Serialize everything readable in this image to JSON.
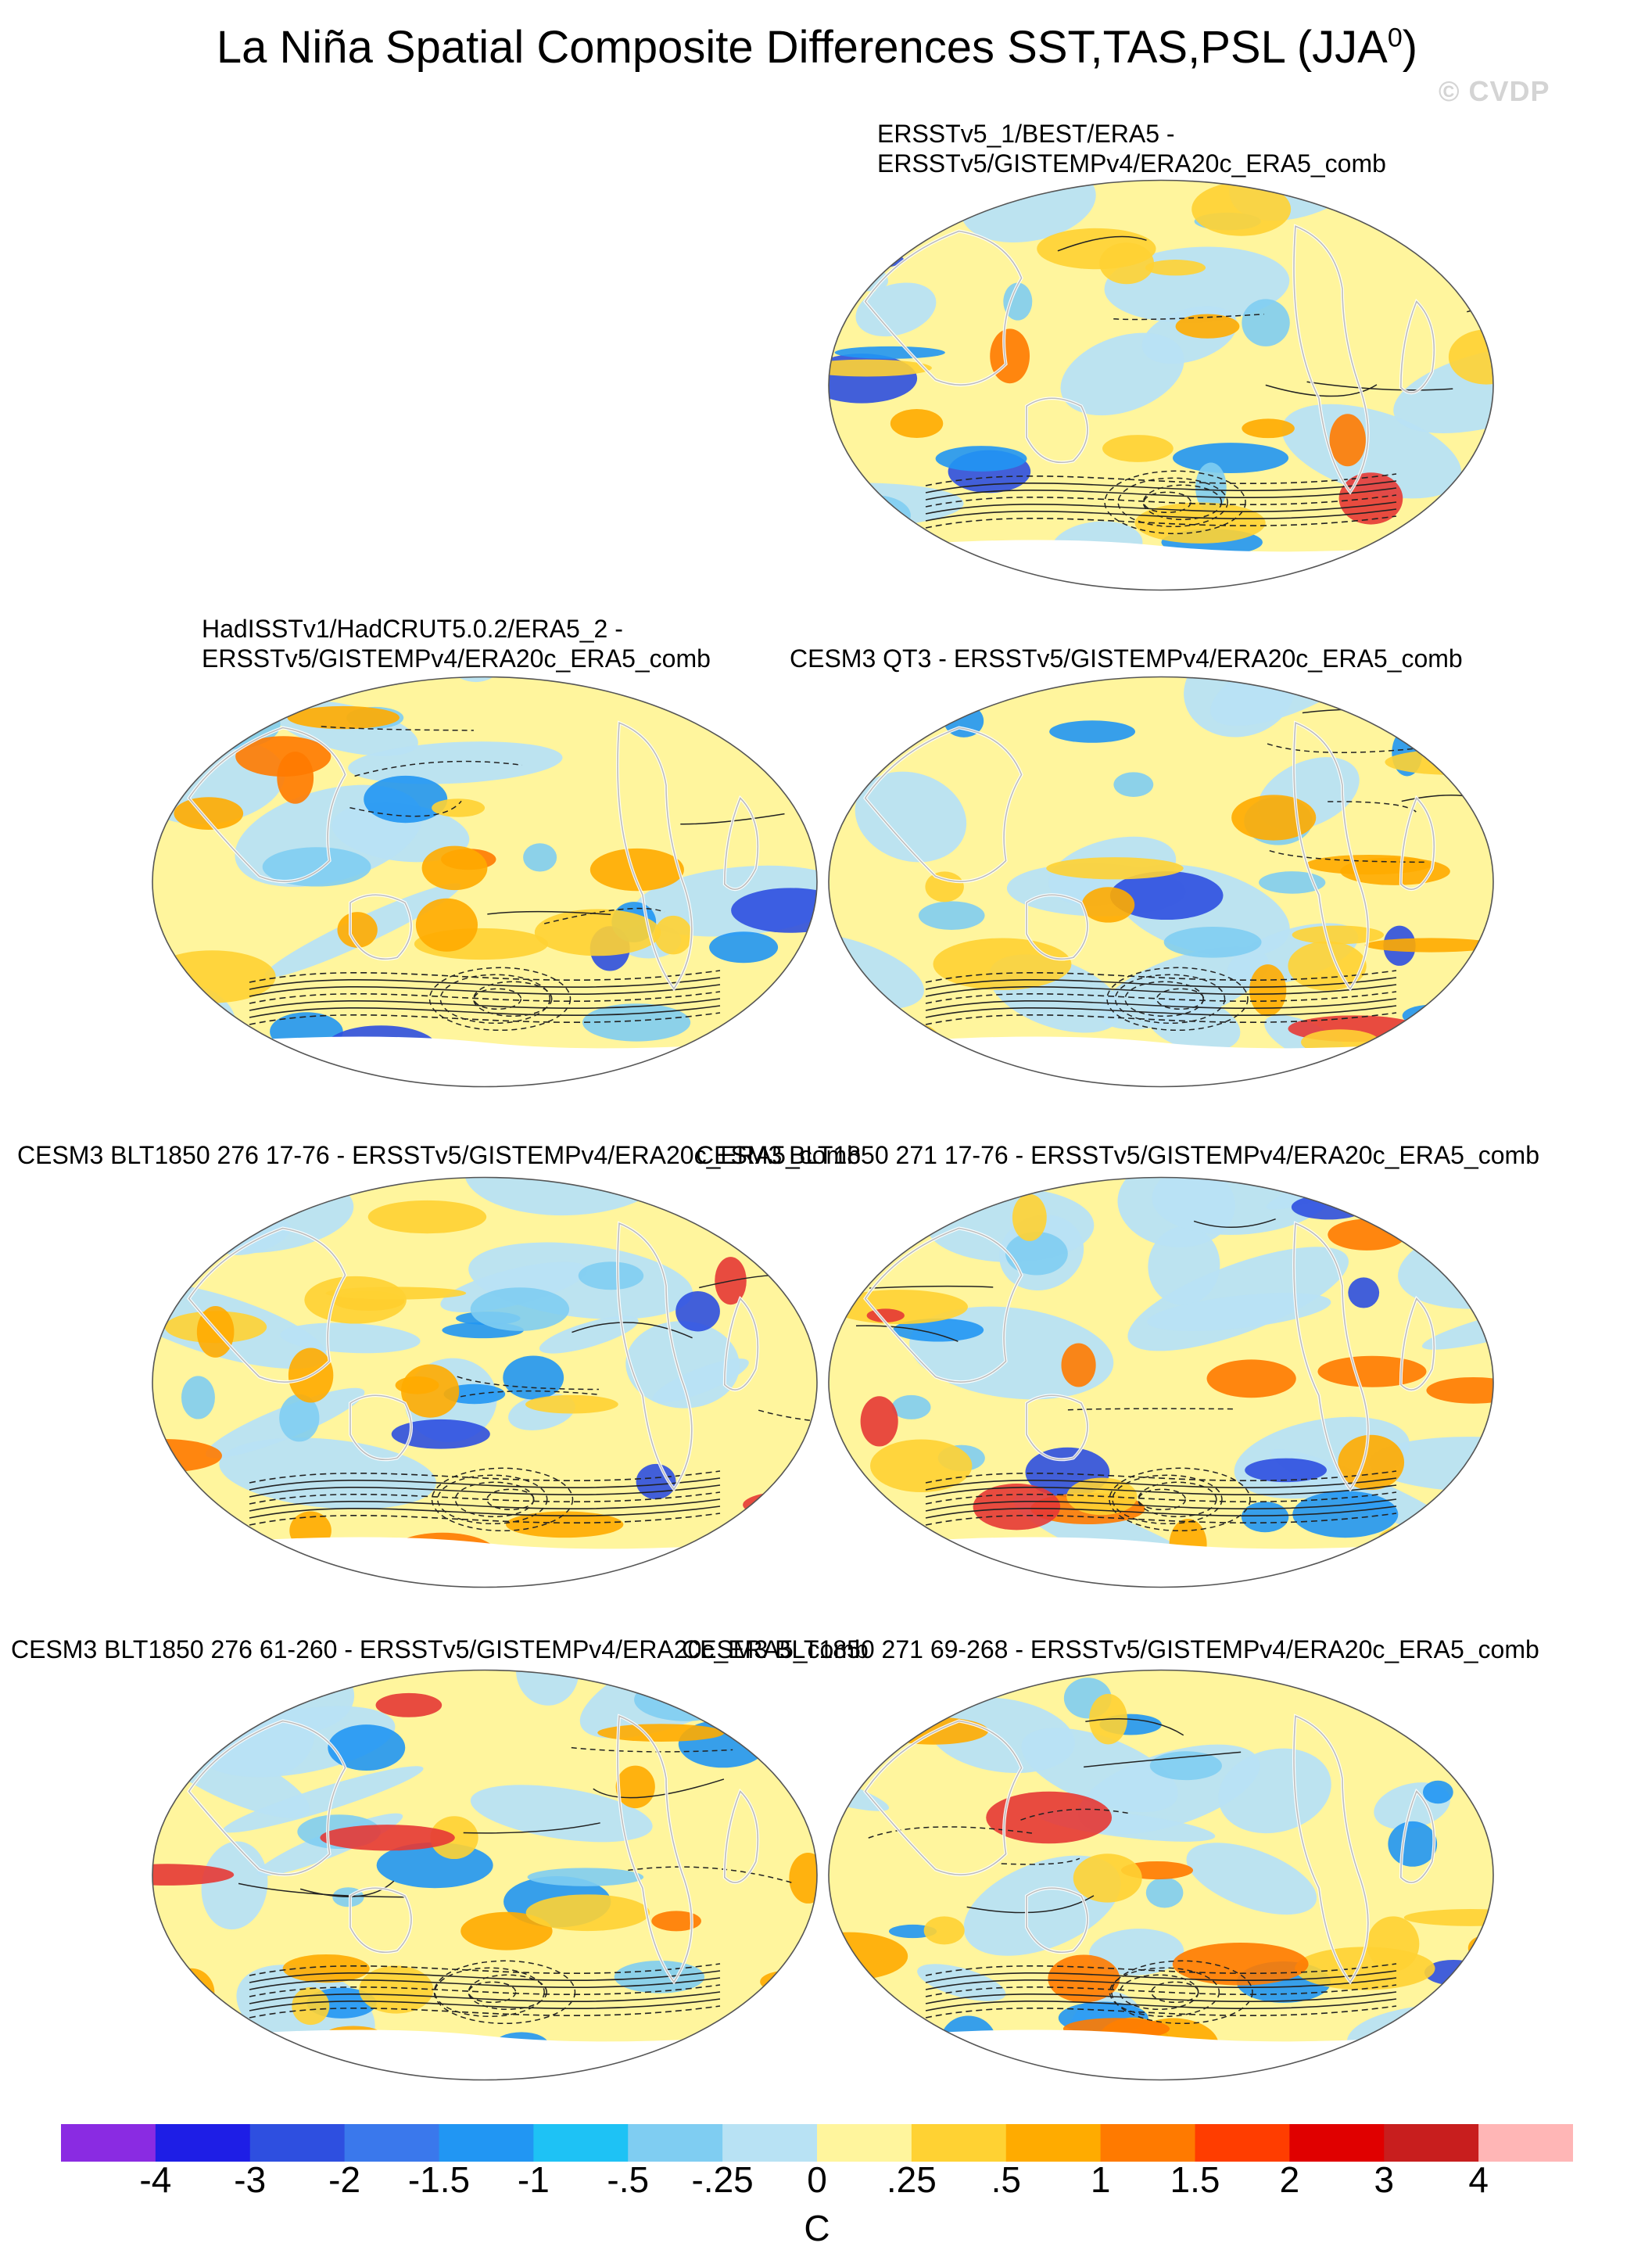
{
  "title": {
    "main": "La Niña Spatial Composite Differences SST,TAS,PSL (JJA",
    "superscript": "0",
    "close": ")"
  },
  "watermark": "© CVDP",
  "panels": [
    {
      "line1": "ERSSTv5_1/BEST/ERA5 -",
      "line2": "ERSSTv5/GISTEMPv4/ERA20c_ERA5_comb"
    },
    {
      "line1": "HadISSTv1/HadCRUT5.0.2/ERA5_2 -",
      "line2": "ERSSTv5/GISTEMPv4/ERA20c_ERA5_comb"
    },
    {
      "line1": "CESM3 QT3 - ERSSTv5/GISTEMPv4/ERA20c_ERA5_comb"
    },
    {
      "line1": "CESM3 BLT1850 276 17-76 - ERSSTv5/GISTEMPv4/ERA20c_ERA5_comb"
    },
    {
      "line1": "CESM3 BLT1850 271 17-76 - ERSSTv5/GISTEMPv4/ERA20c_ERA5_comb"
    },
    {
      "line1": "CESM3 BLT1850 276 61-260 - ERSSTv5/GISTEMPv4/ERA20c_ERA5_comb"
    },
    {
      "line1": "CESM3 BLT1850 271 69-268 - ERSSTv5/GISTEMPv4/ERA20c_ERA5_comb"
    }
  ],
  "colorbar": {
    "unit": "C",
    "ticks": [
      "-4",
      "-3",
      "-2",
      "-1.5",
      "-1",
      "-.5",
      "-.25",
      "0",
      ".25",
      ".5",
      "1",
      "1.5",
      "2",
      "3",
      "4"
    ],
    "colors": [
      "#8a2be2",
      "#1e1ee6",
      "#2e4fe0",
      "#3a78ec",
      "#2196f3",
      "#1ec2f5",
      "#7fcdf2",
      "#b8e2f4",
      "#fff59d",
      "#ffd233",
      "#ffab00",
      "#ff7a00",
      "#ff3d00",
      "#e00000",
      "#c81e1e",
      "#ffb6b6"
    ]
  },
  "palette": {
    "yellow": "#fff59d",
    "gold": "#ffd233",
    "orange": "#ffab00",
    "darkorange": "#ff7a00",
    "red": "#e53935",
    "lightblue": "#b8e2f4",
    "skyblue": "#7fcdf2",
    "blue": "#2196f3",
    "darkblue": "#2e4fe0",
    "land": "#bdbdbd",
    "contour": "#222222"
  }
}
